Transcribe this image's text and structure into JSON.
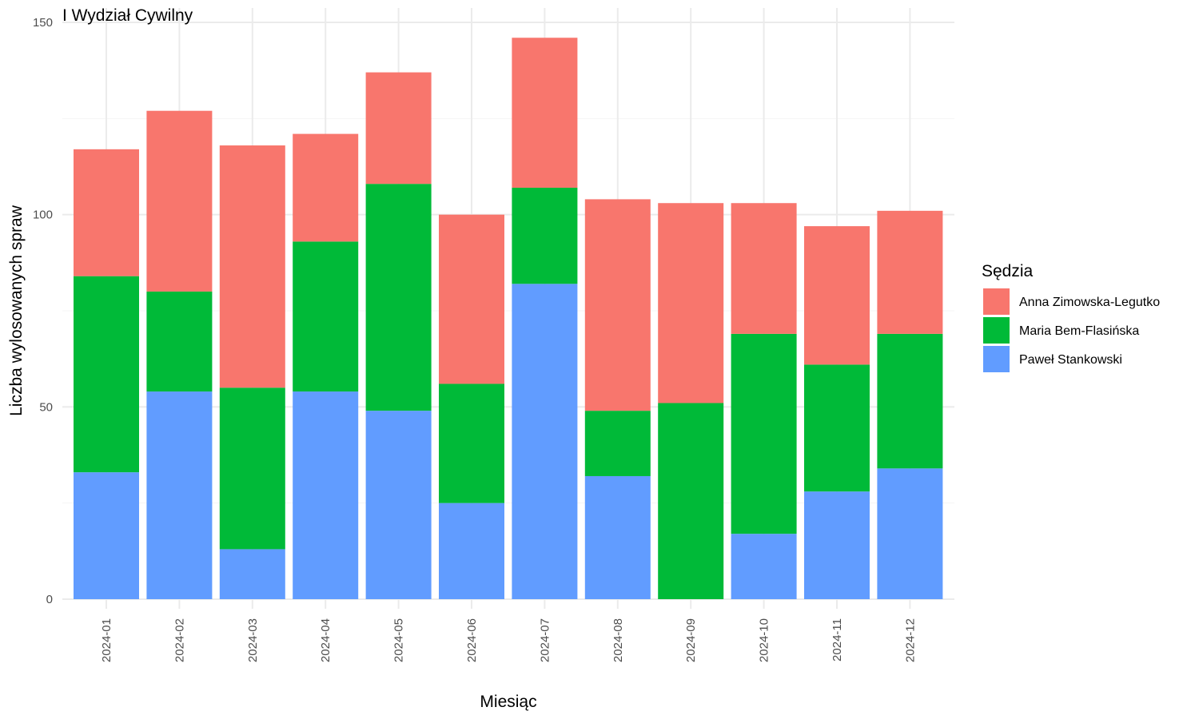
{
  "chart_data": {
    "type": "bar",
    "stacked": true,
    "title": "I Wydział Cywilny",
    "xlabel": "Miesiąc",
    "ylabel": "Liczba wylosowanych spraw",
    "ylim": [
      0,
      150
    ],
    "yticks": [
      0,
      50,
      100,
      150
    ],
    "grid": true,
    "legend_title": "Sędzia",
    "legend_position": "right",
    "categories": [
      "2024-01",
      "2024-02",
      "2024-03",
      "2024-04",
      "2024-05",
      "2024-06",
      "2024-07",
      "2024-08",
      "2024-09",
      "2024-10",
      "2024-11",
      "2024-12"
    ],
    "series": [
      {
        "name": "Paweł Stankowski",
        "color": "#619CFF",
        "values": [
          33,
          54,
          13,
          54,
          49,
          25,
          82,
          32,
          0,
          17,
          28,
          34
        ]
      },
      {
        "name": "Maria Bem-Flasińska",
        "color": "#00BA38",
        "values": [
          51,
          26,
          42,
          39,
          59,
          31,
          25,
          17,
          51,
          52,
          33,
          35
        ]
      },
      {
        "name": "Anna Zimowska-Legutko",
        "color": "#F8766D",
        "values": [
          33,
          47,
          63,
          28,
          29,
          44,
          39,
          55,
          52,
          34,
          36,
          32
        ]
      }
    ],
    "legend_order": [
      "Anna Zimowska-Legutko",
      "Maria Bem-Flasińska",
      "Paweł Stankowski"
    ]
  }
}
